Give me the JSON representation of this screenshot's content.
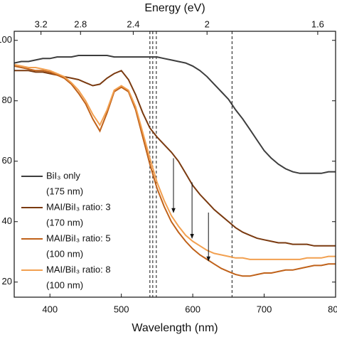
{
  "chart_data": {
    "type": "line",
    "xlabel": "Wavelength (nm)",
    "x2label": "Energy (eV)",
    "xlim": [
      350,
      800
    ],
    "xticks": [
      400,
      500,
      600,
      700,
      800
    ],
    "x2ticks": [
      3.2,
      2.8,
      2.4,
      2,
      1.6
    ],
    "ylim": [
      15,
      103
    ],
    "yticks": [
      100,
      80,
      60,
      40,
      20
    ],
    "vlines": [
      540,
      544,
      549,
      655
    ],
    "arrows": [
      {
        "x": 573,
        "y_start": 61,
        "y_end": 43
      },
      {
        "x": 599,
        "y_start": 53,
        "y_end": 34.5
      },
      {
        "x": 622,
        "y_start": 43,
        "y_end": 27
      }
    ],
    "x": [
      350,
      360,
      370,
      380,
      390,
      400,
      410,
      420,
      430,
      440,
      450,
      460,
      470,
      480,
      490,
      500,
      510,
      520,
      530,
      540,
      550,
      560,
      570,
      580,
      590,
      600,
      610,
      620,
      630,
      640,
      650,
      660,
      670,
      680,
      690,
      700,
      710,
      720,
      730,
      740,
      750,
      760,
      770,
      780,
      790,
      800
    ],
    "series": [
      {
        "name": "BiI₃ only",
        "thickness": "(175 nm)",
        "color": "#3d3d3d",
        "values": [
          92.5,
          93,
          93,
          93.5,
          94,
          94,
          94.5,
          94.5,
          94.5,
          95,
          95,
          95,
          95,
          95,
          94.5,
          94.5,
          94.5,
          94.5,
          94.5,
          94.5,
          94.5,
          94,
          93.5,
          93,
          92.5,
          91.5,
          90,
          88,
          85.5,
          83,
          80.5,
          77,
          74,
          70.5,
          67,
          63.5,
          61,
          59,
          57.5,
          56.5,
          56,
          56,
          56,
          56,
          56.5,
          56.5
        ]
      },
      {
        "name": "MAI/BiI₃ ratio: 3",
        "thickness": "(170 nm)",
        "color": "#7a3a10",
        "values": [
          90,
          90,
          90,
          89.5,
          89.5,
          89,
          88.5,
          88,
          87.5,
          87,
          86,
          85,
          85.5,
          87.5,
          89,
          90,
          87,
          82,
          76,
          71,
          68,
          65.5,
          63,
          60,
          56,
          52,
          49,
          46.5,
          44,
          42,
          40,
          38,
          36.5,
          35.5,
          34.5,
          34,
          33.5,
          33,
          33,
          32.5,
          32.5,
          32.5,
          32,
          32,
          32,
          32
        ]
      },
      {
        "name": "MAI/BiI₃ ratio: 5",
        "thickness": "(100 nm)",
        "color": "#c0621a",
        "values": [
          91.5,
          91,
          90.5,
          90,
          90,
          89.5,
          88.5,
          87.5,
          85.5,
          82.5,
          79,
          74,
          70,
          76,
          83,
          84.5,
          83,
          77,
          68,
          59,
          51,
          45,
          40,
          36.5,
          33.5,
          31,
          29,
          27.5,
          26,
          24.5,
          23.5,
          22.5,
          22,
          22,
          22.5,
          23,
          23,
          23.5,
          24,
          24,
          24.5,
          25,
          25.5,
          25.5,
          26,
          26
        ]
      },
      {
        "name": "MAI/BiI₃ ratio: 8",
        "thickness": "(100 nm)",
        "color": "#f2a050",
        "values": [
          92,
          91.5,
          91,
          91,
          90.5,
          90,
          89,
          88,
          86,
          83.5,
          80,
          75.5,
          72,
          77,
          83.5,
          85,
          83.5,
          78,
          69.5,
          61,
          53,
          47,
          42,
          38.5,
          35.5,
          33.5,
          32,
          30.5,
          29.5,
          29,
          28.5,
          28,
          28,
          27.5,
          27.5,
          27.5,
          27.5,
          27.5,
          27.5,
          27.5,
          27.5,
          28,
          28,
          28,
          28.5,
          28.5
        ]
      }
    ]
  }
}
